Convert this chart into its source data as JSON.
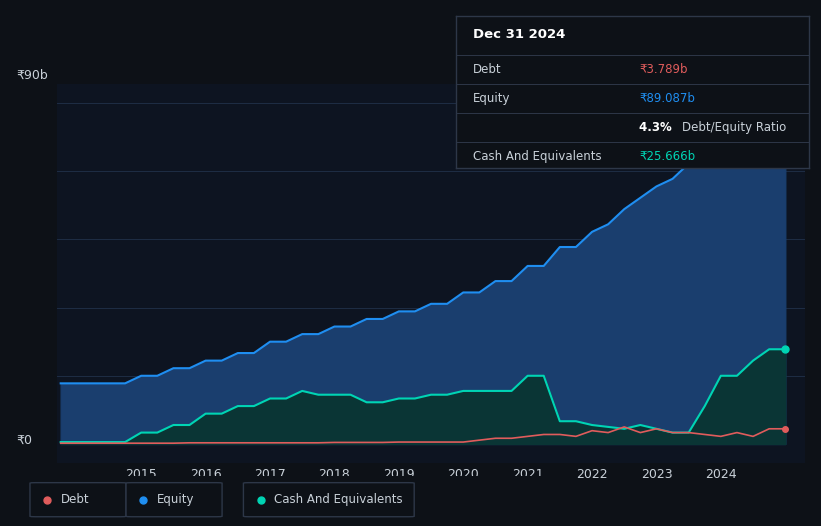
{
  "background_color": "#0d1117",
  "plot_bg_color": "#0d1421",
  "grid_color": "#1e2d45",
  "text_color": "#c9d1d9",
  "equity_color": "#1f8ef1",
  "equity_fill": "#1a3e6e",
  "cash_color": "#00d4b4",
  "cash_fill": "#0a3535",
  "debt_color": "#e05c5c",
  "ylabel_text": "₹90b",
  "y0_text": "₹0",
  "ylim": [
    -5,
    95
  ],
  "xlim": [
    2013.7,
    2025.3
  ],
  "xticks": [
    2015,
    2016,
    2017,
    2018,
    2019,
    2020,
    2021,
    2022,
    2023,
    2024
  ],
  "legend_items": [
    "Debt",
    "Equity",
    "Cash And Equivalents"
  ],
  "tooltip_date": "Dec 31 2024",
  "tooltip_debt_label": "Debt",
  "tooltip_debt_value": "₹3.789b",
  "tooltip_equity_label": "Equity",
  "tooltip_equity_value": "₹89.087b",
  "tooltip_ratio": "4.3% Debt/Equity Ratio",
  "tooltip_cash_label": "Cash And Equivalents",
  "tooltip_cash_value": "₹25.666b",
  "tooltip_bg": "#0d1117",
  "tooltip_border": "#2d3748",
  "equity_x": [
    2013.75,
    2014.0,
    2014.25,
    2014.5,
    2014.75,
    2015.0,
    2015.25,
    2015.5,
    2015.75,
    2016.0,
    2016.25,
    2016.5,
    2016.75,
    2017.0,
    2017.25,
    2017.5,
    2017.75,
    2018.0,
    2018.25,
    2018.5,
    2018.75,
    2019.0,
    2019.25,
    2019.5,
    2019.75,
    2020.0,
    2020.25,
    2020.5,
    2020.75,
    2021.0,
    2021.25,
    2021.5,
    2021.75,
    2022.0,
    2022.25,
    2022.5,
    2022.75,
    2023.0,
    2023.25,
    2023.5,
    2023.75,
    2024.0,
    2024.25,
    2024.5,
    2024.75,
    2025.0
  ],
  "equity_y": [
    16,
    16,
    16,
    16,
    16,
    18,
    18,
    20,
    20,
    22,
    22,
    24,
    24,
    27,
    27,
    29,
    29,
    31,
    31,
    33,
    33,
    35,
    35,
    37,
    37,
    40,
    40,
    43,
    43,
    47,
    47,
    52,
    52,
    56,
    58,
    62,
    65,
    68,
    70,
    74,
    78,
    81,
    83,
    86,
    89,
    89
  ],
  "cash_x": [
    2013.75,
    2014.0,
    2014.25,
    2014.5,
    2014.75,
    2015.0,
    2015.25,
    2015.5,
    2015.75,
    2016.0,
    2016.25,
    2016.5,
    2016.75,
    2017.0,
    2017.25,
    2017.5,
    2017.75,
    2018.0,
    2018.25,
    2018.5,
    2018.75,
    2019.0,
    2019.25,
    2019.5,
    2019.75,
    2020.0,
    2020.25,
    2020.5,
    2020.75,
    2021.0,
    2021.25,
    2021.5,
    2021.75,
    2022.0,
    2022.25,
    2022.5,
    2022.75,
    2023.0,
    2023.25,
    2023.5,
    2023.75,
    2024.0,
    2024.25,
    2024.5,
    2024.75,
    2025.0
  ],
  "cash_y": [
    0.5,
    0.5,
    0.5,
    0.5,
    0.5,
    3,
    3,
    5,
    5,
    8,
    8,
    10,
    10,
    12,
    12,
    14,
    13,
    13,
    13,
    11,
    11,
    12,
    12,
    13,
    13,
    14,
    14,
    14,
    14,
    18,
    18,
    6,
    6,
    5,
    4.5,
    4,
    5,
    4,
    3,
    3,
    10,
    18,
    18,
    22,
    25,
    25
  ],
  "debt_x": [
    2013.75,
    2014.0,
    2014.25,
    2014.5,
    2014.75,
    2015.0,
    2015.25,
    2015.5,
    2015.75,
    2016.0,
    2016.25,
    2016.5,
    2016.75,
    2017.0,
    2017.25,
    2017.5,
    2017.75,
    2018.0,
    2018.25,
    2018.5,
    2018.75,
    2019.0,
    2019.25,
    2019.5,
    2019.75,
    2020.0,
    2020.25,
    2020.5,
    2020.75,
    2021.0,
    2021.25,
    2021.5,
    2021.75,
    2022.0,
    2022.25,
    2022.5,
    2022.75,
    2023.0,
    2023.25,
    2023.5,
    2023.75,
    2024.0,
    2024.25,
    2024.5,
    2024.75,
    2025.0
  ],
  "debt_y": [
    0.2,
    0.2,
    0.2,
    0.2,
    0.2,
    0.2,
    0.2,
    0.2,
    0.3,
    0.3,
    0.3,
    0.3,
    0.3,
    0.3,
    0.3,
    0.3,
    0.3,
    0.4,
    0.4,
    0.4,
    0.4,
    0.5,
    0.5,
    0.5,
    0.5,
    0.5,
    1.0,
    1.5,
    1.5,
    2.0,
    2.5,
    2.5,
    2.0,
    3.5,
    3.0,
    4.5,
    3.0,
    4.0,
    3.0,
    3.0,
    2.5,
    2.0,
    3.0,
    2.0,
    4.0,
    4.0
  ]
}
